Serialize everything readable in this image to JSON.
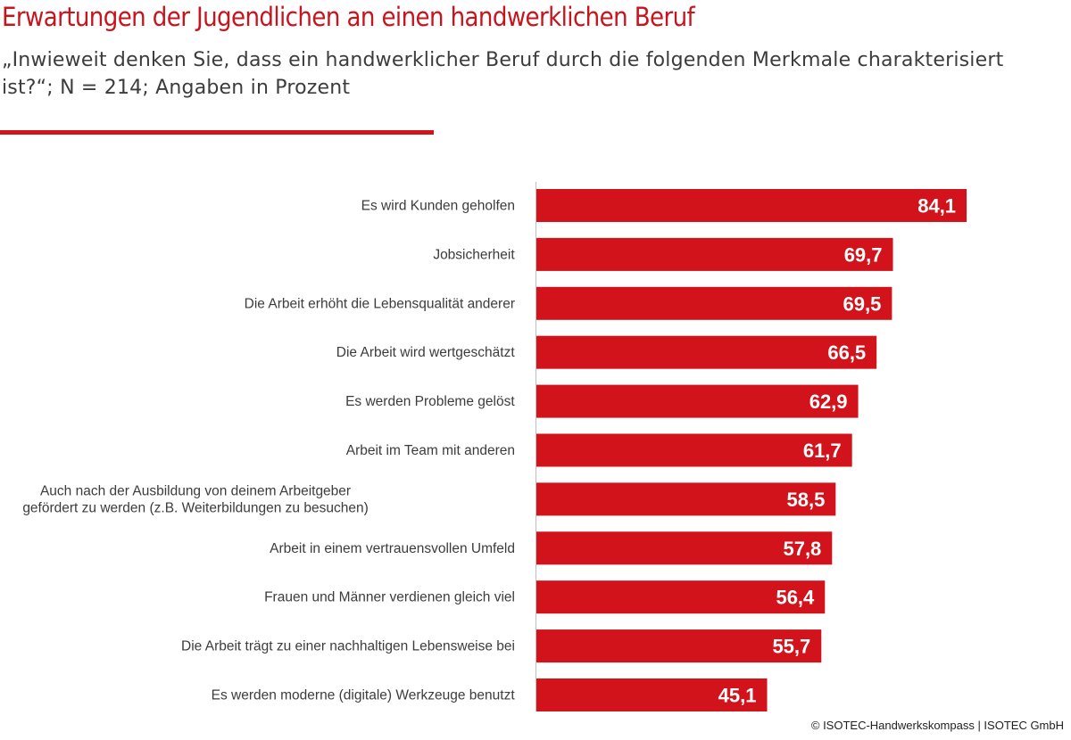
{
  "header": {
    "title": "Erwartungen der Jugendlichen an einen handwerklichen Beruf",
    "subtitle": "„Inwieweit denken Sie, dass ein handwerklicher Beruf durch die folgenden Merkmale charakterisiert ist?“; N = 214; Angaben in Prozent"
  },
  "footer": {
    "copyright": "© ISOTEC-Handwerkskompass | ISOTEC GmbH"
  },
  "colors": {
    "accent": "#c8141c",
    "bar": "#d2131b",
    "axis": "#bfbfbf"
  },
  "chart_data": {
    "type": "bar",
    "orientation": "horizontal",
    "categories": [
      [
        "Es wird Kunden geholfen"
      ],
      [
        "Jobsicherheit"
      ],
      [
        "Die Arbeit erhöht die Lebensqualität anderer"
      ],
      [
        "Die Arbeit wird wertgeschätzt"
      ],
      [
        "Es werden Probleme gelöst"
      ],
      [
        "Arbeit im Team mit anderen"
      ],
      [
        "Auch nach der Ausbildung von deinem Arbeitgeber",
        "gefördert zu werden (z.B. Weiterbildungen zu besuchen)"
      ],
      [
        "Arbeit in einem vertrauensvollen Umfeld"
      ],
      [
        "Frauen und Männer verdienen gleich viel"
      ],
      [
        "Die Arbeit trägt zu einer nachhaltigen Lebensweise bei"
      ],
      [
        "Es werden moderne (digitale) Werkzeuge benutzt"
      ]
    ],
    "values": [
      84.1,
      69.7,
      69.5,
      66.5,
      62.9,
      61.7,
      58.5,
      57.8,
      56.4,
      55.7,
      45.1
    ],
    "value_labels": [
      "84,1",
      "69,7",
      "69,5",
      "66,5",
      "62,9",
      "61,7",
      "58,5",
      "57,8",
      "56,4",
      "55,7",
      "45,1"
    ],
    "xlim": [
      0,
      100
    ],
    "grid": false,
    "legend": "none"
  }
}
